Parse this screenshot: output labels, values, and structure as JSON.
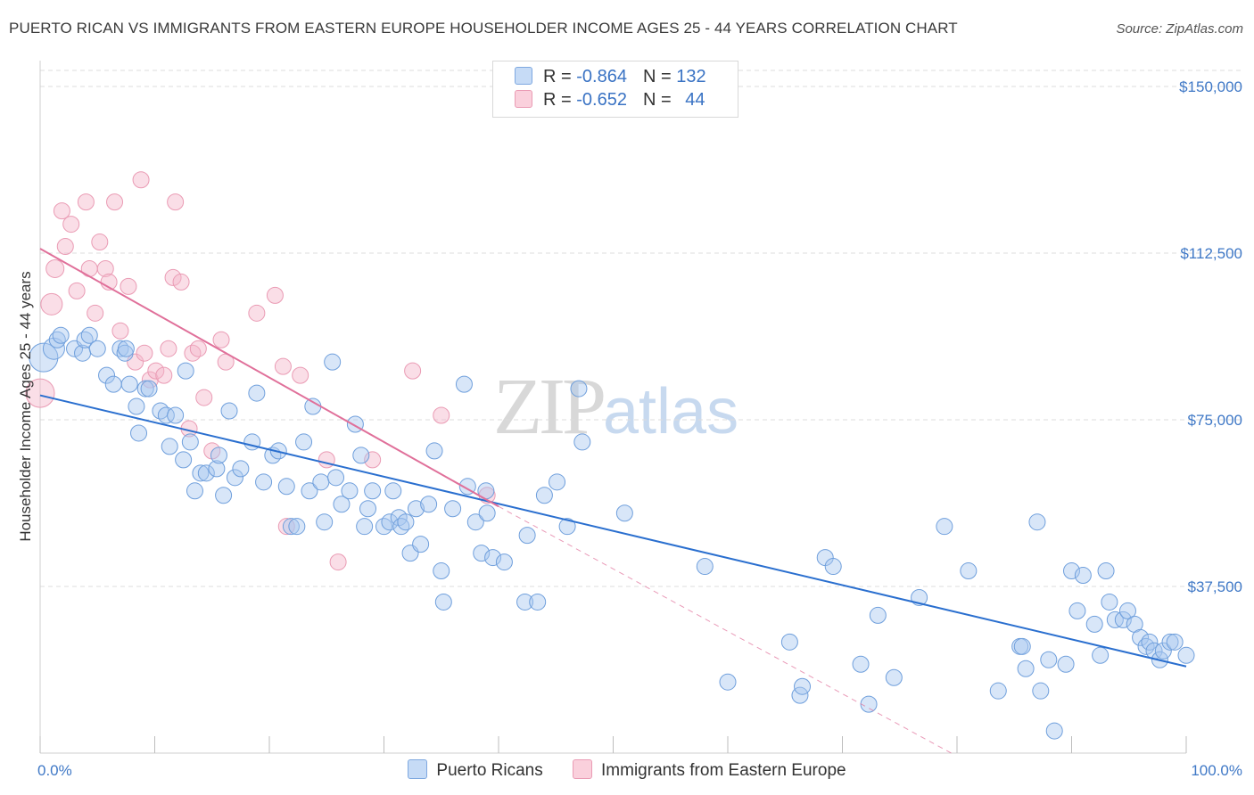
{
  "title": "PUERTO RICAN VS IMMIGRANTS FROM EASTERN EUROPE HOUSEHOLDER INCOME AGES 25 - 44 YEARS CORRELATION CHART",
  "source": "Source: ZipAtlas.com",
  "watermark": {
    "zip": "ZIP",
    "atlas": "atlas"
  },
  "legend": {
    "rows": [
      {
        "r_label": "R = ",
        "r_value": "-0.864",
        "n_label": "N = ",
        "n_value": "132",
        "color": "#a9c8f0"
      },
      {
        "r_label": "R = ",
        "r_value": "-0.652",
        "n_label": "N = ",
        "n_value": "44",
        "color": "#f5b6ca"
      }
    ]
  },
  "bottom_legend": [
    "Puerto Ricans",
    "Immigrants from Eastern Europe"
  ],
  "chart_data": {
    "type": "scatter",
    "xlabel": "",
    "ylabel": "Householder Income Ages 25 - 44 years",
    "xlim": [
      0,
      100
    ],
    "ylim": [
      0,
      150000
    ],
    "x_tick_labels": [
      "0.0%",
      "100.0%"
    ],
    "y_ticks": [
      37500,
      75000,
      112500,
      150000
    ],
    "y_tick_labels": [
      "$37,500",
      "$75,000",
      "$112,500",
      "$150,000"
    ],
    "grid": "horizontal dashed",
    "legend_position": "top-center",
    "series": [
      {
        "name": "Puerto Ricans",
        "color": "#a9c8f0",
        "line_color": "#2a6fcf",
        "trend": {
          "x": [
            0,
            100
          ],
          "y": [
            80500,
            19500
          ]
        },
        "points": [
          [
            0.3,
            89000,
            16
          ],
          [
            1.2,
            91000,
            12
          ],
          [
            1.5,
            93000,
            9
          ],
          [
            1.8,
            94000,
            9
          ],
          [
            3.0,
            91000,
            9
          ],
          [
            3.7,
            90000,
            9
          ],
          [
            3.9,
            93000,
            9
          ],
          [
            4.3,
            94000,
            9
          ],
          [
            5.0,
            91000,
            9
          ],
          [
            5.8,
            85000,
            9
          ],
          [
            6.4,
            83000,
            9
          ],
          [
            7.0,
            91000,
            9
          ],
          [
            7.4,
            90000,
            9
          ],
          [
            7.5,
            91000,
            9
          ],
          [
            7.8,
            83000,
            9
          ],
          [
            8.4,
            78000,
            9
          ],
          [
            8.6,
            72000,
            9
          ],
          [
            9.2,
            82000,
            9
          ],
          [
            9.5,
            82000,
            9
          ],
          [
            10.5,
            77000,
            9
          ],
          [
            11.0,
            76000,
            9
          ],
          [
            11.3,
            69000,
            9
          ],
          [
            11.8,
            76000,
            9
          ],
          [
            12.5,
            66000,
            9
          ],
          [
            12.7,
            86000,
            9
          ],
          [
            13.1,
            70000,
            9
          ],
          [
            13.5,
            59000,
            9
          ],
          [
            14.0,
            63000,
            9
          ],
          [
            14.5,
            63000,
            9
          ],
          [
            15.4,
            64000,
            9
          ],
          [
            15.6,
            67000,
            9
          ],
          [
            16.0,
            58000,
            9
          ],
          [
            16.5,
            77000,
            9
          ],
          [
            17.0,
            62000,
            9
          ],
          [
            17.5,
            64000,
            9
          ],
          [
            18.5,
            70000,
            9
          ],
          [
            18.9,
            81000,
            9
          ],
          [
            19.5,
            61000,
            9
          ],
          [
            20.3,
            67000,
            9
          ],
          [
            20.8,
            68000,
            9
          ],
          [
            21.5,
            60000,
            9
          ],
          [
            21.9,
            51000,
            9
          ],
          [
            22.4,
            51000,
            9
          ],
          [
            23.0,
            70000,
            9
          ],
          [
            23.5,
            59000,
            9
          ],
          [
            23.8,
            78000,
            9
          ],
          [
            24.5,
            61000,
            9
          ],
          [
            24.8,
            52000,
            9
          ],
          [
            25.5,
            88000,
            9
          ],
          [
            25.8,
            62000,
            9
          ],
          [
            26.3,
            56000,
            9
          ],
          [
            27.0,
            59000,
            9
          ],
          [
            27.5,
            74000,
            9
          ],
          [
            28.0,
            67000,
            9
          ],
          [
            28.3,
            51000,
            9
          ],
          [
            28.6,
            55000,
            9
          ],
          [
            29.0,
            59000,
            9
          ],
          [
            30.0,
            51000,
            9
          ],
          [
            30.5,
            52000,
            9
          ],
          [
            30.8,
            59000,
            9
          ],
          [
            31.3,
            53000,
            9
          ],
          [
            31.5,
            51000,
            9
          ],
          [
            31.9,
            52000,
            9
          ],
          [
            32.3,
            45000,
            9
          ],
          [
            32.8,
            55000,
            9
          ],
          [
            33.2,
            47000,
            9
          ],
          [
            33.9,
            56000,
            9
          ],
          [
            34.4,
            68000,
            9
          ],
          [
            35.0,
            41000,
            9
          ],
          [
            35.2,
            34000,
            9
          ],
          [
            36.0,
            55000,
            9
          ],
          [
            37.0,
            83000,
            9
          ],
          [
            37.3,
            60000,
            9
          ],
          [
            38.0,
            52000,
            9
          ],
          [
            38.5,
            45000,
            9
          ],
          [
            38.9,
            59000,
            9
          ],
          [
            39.0,
            54000,
            9
          ],
          [
            39.5,
            44000,
            9
          ],
          [
            40.5,
            43000,
            9
          ],
          [
            42.3,
            34000,
            9
          ],
          [
            42.5,
            49000,
            9
          ],
          [
            43.4,
            34000,
            9
          ],
          [
            44.0,
            58000,
            9
          ],
          [
            45.1,
            61000,
            9
          ],
          [
            46.0,
            51000,
            9
          ],
          [
            47.0,
            82000,
            9
          ],
          [
            47.3,
            70000,
            9
          ],
          [
            51.0,
            54000,
            9
          ],
          [
            58.0,
            42000,
            9
          ],
          [
            60.0,
            16000,
            9
          ],
          [
            65.4,
            25000,
            9
          ],
          [
            66.3,
            13000,
            9
          ],
          [
            66.5,
            15000,
            9
          ],
          [
            68.5,
            44000,
            9
          ],
          [
            69.2,
            42000,
            9
          ],
          [
            71.6,
            20000,
            9
          ],
          [
            72.3,
            11000,
            9
          ],
          [
            73.1,
            31000,
            9
          ],
          [
            74.5,
            17000,
            9
          ],
          [
            76.7,
            35000,
            9
          ],
          [
            78.9,
            51000,
            9
          ],
          [
            81.0,
            41000,
            9
          ],
          [
            83.6,
            14000,
            9
          ],
          [
            85.5,
            24000,
            9
          ],
          [
            85.7,
            24000,
            9
          ],
          [
            86.0,
            19000,
            9
          ],
          [
            87.0,
            52000,
            9
          ],
          [
            87.3,
            14000,
            9
          ],
          [
            88.0,
            21000,
            9
          ],
          [
            88.5,
            5000,
            9
          ],
          [
            89.5,
            20000,
            9
          ],
          [
            90.0,
            41000,
            9
          ],
          [
            90.5,
            32000,
            9
          ],
          [
            91.0,
            40000,
            9
          ],
          [
            92.0,
            29000,
            9
          ],
          [
            92.5,
            22000,
            9
          ],
          [
            93.0,
            41000,
            9
          ],
          [
            93.3,
            34000,
            9
          ],
          [
            93.8,
            30000,
            9
          ],
          [
            94.5,
            30000,
            9
          ],
          [
            94.9,
            32000,
            9
          ],
          [
            95.5,
            29000,
            9
          ],
          [
            96.0,
            26000,
            9
          ],
          [
            96.5,
            24000,
            9
          ],
          [
            96.8,
            25000,
            9
          ],
          [
            97.2,
            23000,
            9
          ],
          [
            97.7,
            21000,
            9
          ],
          [
            98.0,
            23000,
            9
          ],
          [
            98.6,
            25000,
            9
          ],
          [
            99.0,
            25000,
            9
          ],
          [
            100.0,
            22000,
            9
          ]
        ]
      },
      {
        "name": "Immigrants from Eastern Europe",
        "color": "#f5b6ca",
        "line_color": "#e0709a",
        "trend": {
          "x": [
            0,
            40
          ],
          "y": [
            113500,
            55500
          ]
        },
        "trend_dashed": {
          "x": [
            40,
            79.5
          ],
          "y": [
            55500,
            0
          ]
        },
        "points": [
          [
            0.0,
            81000,
            16
          ],
          [
            1.0,
            101000,
            12
          ],
          [
            1.3,
            109000,
            10
          ],
          [
            1.9,
            122000,
            9
          ],
          [
            2.2,
            114000,
            9
          ],
          [
            2.7,
            119000,
            9
          ],
          [
            3.2,
            104000,
            9
          ],
          [
            4.0,
            124000,
            9
          ],
          [
            4.3,
            109000,
            9
          ],
          [
            4.8,
            99000,
            9
          ],
          [
            5.2,
            115000,
            9
          ],
          [
            5.7,
            109000,
            9
          ],
          [
            6.0,
            106000,
            9
          ],
          [
            6.5,
            124000,
            9
          ],
          [
            7.0,
            95000,
            9
          ],
          [
            7.7,
            105000,
            9
          ],
          [
            8.3,
            88000,
            9
          ],
          [
            8.8,
            129000,
            9
          ],
          [
            9.1,
            90000,
            9
          ],
          [
            9.6,
            84000,
            9
          ],
          [
            10.1,
            86000,
            9
          ],
          [
            10.8,
            85000,
            9
          ],
          [
            11.2,
            91000,
            9
          ],
          [
            11.6,
            107000,
            9
          ],
          [
            11.8,
            124000,
            9
          ],
          [
            12.3,
            106000,
            9
          ],
          [
            13.0,
            73000,
            9
          ],
          [
            13.3,
            90000,
            9
          ],
          [
            13.8,
            91000,
            9
          ],
          [
            14.3,
            80000,
            9
          ],
          [
            15.0,
            68000,
            9
          ],
          [
            15.8,
            93000,
            9
          ],
          [
            16.2,
            88000,
            9
          ],
          [
            18.9,
            99000,
            9
          ],
          [
            20.5,
            103000,
            9
          ],
          [
            21.2,
            87000,
            9
          ],
          [
            21.5,
            51000,
            9
          ],
          [
            22.7,
            85000,
            9
          ],
          [
            25.0,
            66000,
            9
          ],
          [
            26.0,
            43000,
            9
          ],
          [
            29.0,
            66000,
            9
          ],
          [
            32.5,
            86000,
            9
          ],
          [
            35.0,
            76000,
            9
          ],
          [
            39.0,
            58000,
            9
          ]
        ]
      }
    ]
  }
}
